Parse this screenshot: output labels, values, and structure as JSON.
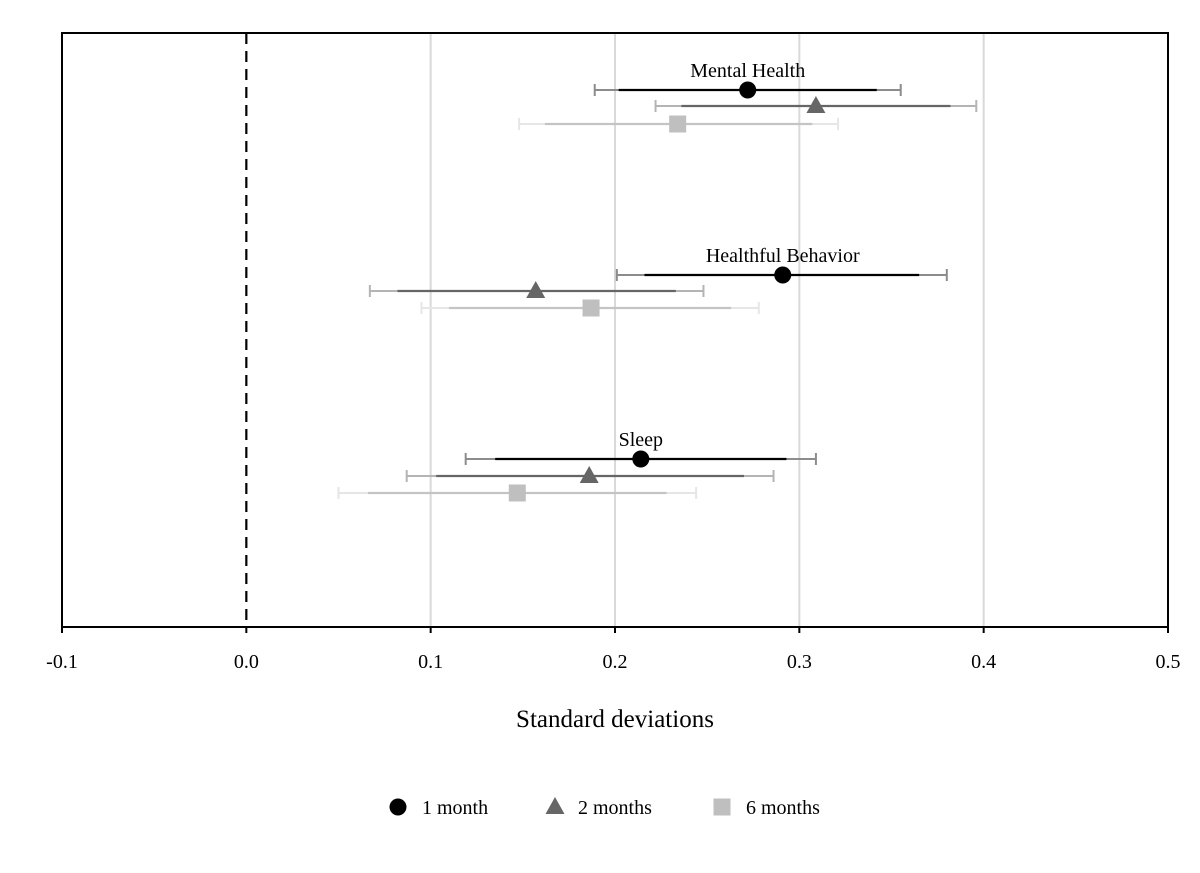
{
  "chart_data": {
    "type": "scatter",
    "title": "",
    "xlabel": "Standard deviations",
    "ylabel": "",
    "xlim": [
      -0.1,
      0.5
    ],
    "xticks": [
      -0.1,
      0.0,
      0.1,
      0.2,
      0.3,
      0.4,
      0.5
    ],
    "xtick_labels": [
      "-0.1",
      "0.0",
      "0.1",
      "0.2",
      "0.3",
      "0.4",
      "0.5"
    ],
    "grid": "vertical",
    "reference_line": 0.0,
    "legend": "bottom",
    "series": [
      {
        "name": "1 month",
        "marker": "circle",
        "color": "#000000",
        "ci_color": "#000000",
        "ci90_color": "#8c8c8c"
      },
      {
        "name": "2 months",
        "marker": "triangle",
        "color": "#666666",
        "ci_color": "#666666",
        "ci90_color": "#b4b4b4"
      },
      {
        "name": "6 months",
        "marker": "square",
        "color": "#bfbfbf",
        "ci_color": "#c4c4c4",
        "ci90_color": "#e6e6e6"
      }
    ],
    "groups": [
      {
        "label": "Mental Health",
        "points": [
          {
            "series": "1 month",
            "estimate": 0.272,
            "ci_inner": [
              0.202,
              0.342
            ],
            "ci_outer": [
              0.189,
              0.355
            ]
          },
          {
            "series": "2 months",
            "estimate": 0.309,
            "ci_inner": [
              0.236,
              0.382
            ],
            "ci_outer": [
              0.222,
              0.396
            ]
          },
          {
            "series": "6 months",
            "estimate": 0.234,
            "ci_inner": [
              0.162,
              0.307
            ],
            "ci_outer": [
              0.148,
              0.321
            ]
          }
        ]
      },
      {
        "label": "Healthful Behavior",
        "points": [
          {
            "series": "1 month",
            "estimate": 0.291,
            "ci_inner": [
              0.216,
              0.365
            ],
            "ci_outer": [
              0.201,
              0.38
            ]
          },
          {
            "series": "2 months",
            "estimate": 0.157,
            "ci_inner": [
              0.082,
              0.233
            ],
            "ci_outer": [
              0.067,
              0.248
            ]
          },
          {
            "series": "6 months",
            "estimate": 0.187,
            "ci_inner": [
              0.11,
              0.263
            ],
            "ci_outer": [
              0.095,
              0.278
            ]
          }
        ]
      },
      {
        "label": "Sleep",
        "points": [
          {
            "series": "1 month",
            "estimate": 0.214,
            "ci_inner": [
              0.135,
              0.293
            ],
            "ci_outer": [
              0.119,
              0.309
            ]
          },
          {
            "series": "2 months",
            "estimate": 0.186,
            "ci_inner": [
              0.103,
              0.27
            ],
            "ci_outer": [
              0.087,
              0.286
            ]
          },
          {
            "series": "6 months",
            "estimate": 0.147,
            "ci_inner": [
              0.066,
              0.228
            ],
            "ci_outer": [
              0.05,
              0.244
            ]
          }
        ]
      }
    ]
  }
}
